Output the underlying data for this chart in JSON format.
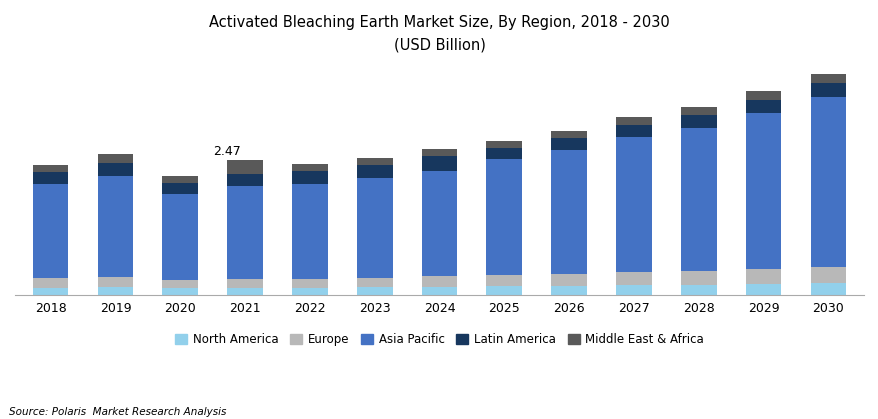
{
  "title_line1": "Activated Bleaching Earth Market Size, By Region, 2018 - 2030",
  "title_line2": "(USD Billion)",
  "source": "Source: Polaris  Market Research Analysis",
  "years": [
    2018,
    2019,
    2020,
    2021,
    2022,
    2023,
    2024,
    2025,
    2026,
    2027,
    2028,
    2029,
    2030
  ],
  "annotation": {
    "year": 2021,
    "text": "2.47"
  },
  "segments": {
    "North America": {
      "color": "#92d0eb",
      "values": [
        0.13,
        0.14,
        0.12,
        0.13,
        0.13,
        0.14,
        0.15,
        0.16,
        0.17,
        0.18,
        0.19,
        0.2,
        0.22
      ]
    },
    "Europe": {
      "color": "#b8b8b8",
      "values": [
        0.18,
        0.19,
        0.16,
        0.17,
        0.17,
        0.18,
        0.19,
        0.2,
        0.22,
        0.24,
        0.25,
        0.27,
        0.29
      ]
    },
    "Asia Pacific": {
      "color": "#4472c4",
      "values": [
        1.72,
        1.85,
        1.58,
        1.7,
        1.74,
        1.82,
        1.94,
        2.14,
        2.27,
        2.48,
        2.63,
        2.87,
        3.12
      ]
    },
    "Latin America": {
      "color": "#17375e",
      "values": [
        0.22,
        0.24,
        0.2,
        0.22,
        0.23,
        0.24,
        0.26,
        0.2,
        0.21,
        0.22,
        0.23,
        0.24,
        0.26
      ]
    },
    "Middle East & Africa": {
      "color": "#595959",
      "values": [
        0.13,
        0.16,
        0.12,
        0.25,
        0.13,
        0.14,
        0.14,
        0.13,
        0.14,
        0.15,
        0.15,
        0.16,
        0.17
      ]
    }
  },
  "legend_order": [
    "North America",
    "Europe",
    "Asia Pacific",
    "Latin America",
    "Middle East & Africa"
  ],
  "background_color": "#ffffff",
  "bar_width": 0.55,
  "ylim": [
    0,
    4.2
  ],
  "figsize": [
    8.79,
    4.19
  ],
  "dpi": 100
}
